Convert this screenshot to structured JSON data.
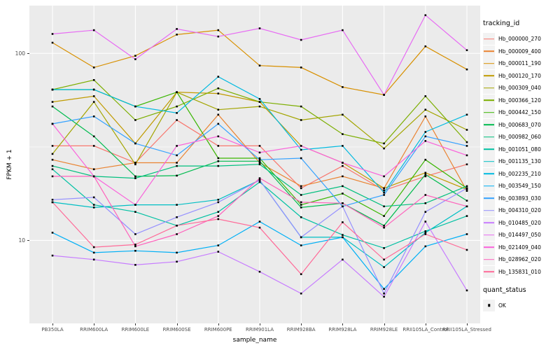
{
  "chart_data": {
    "type": "line",
    "title": "",
    "xlabel": "sample_name",
    "ylabel": "FPKM + 1",
    "x_categories": [
      "PB350LA",
      "RRIM600LA",
      "RRIM600LE",
      "RRIM600SE",
      "RRIM600PE",
      "RRIM901LA",
      "RRIM928BA",
      "RRIM928LA",
      "RRIM928LE",
      "RRII105LA_Control",
      "RRII105LA_Stressed"
    ],
    "y_scale": "log10",
    "ylim": [
      3.6,
      180
    ],
    "y_major_ticks": [
      10,
      100
    ],
    "y_minor_ticks": [
      31.6
    ],
    "grid": true,
    "panel_background": "#EBEBEB",
    "gridline_color": "#FFFFFF",
    "point_marker": "black-square",
    "legend_position": "right",
    "legend_title": "tracking_id",
    "point_legend": {
      "title": "quant_status",
      "label": "OK",
      "marker": "black-square"
    },
    "series": [
      {
        "name": "Hb_000000_270",
        "color": "#F8766D",
        "values": [
          32,
          32,
          26,
          44,
          32,
          32,
          19,
          25,
          18.5,
          22,
          25.5
        ]
      },
      {
        "name": "Hb_000009_400",
        "color": "#EA8331",
        "values": [
          27,
          24,
          26,
          26,
          47,
          26,
          19.5,
          22,
          19,
          46,
          18.4
        ]
      },
      {
        "name": "Hb_000011_190",
        "color": "#D89000",
        "values": [
          114,
          84,
          97,
          126,
          133,
          86,
          84,
          66,
          60,
          109,
          82
        ]
      },
      {
        "name": "Hb_000120_170",
        "color": "#C09B00",
        "values": [
          55,
          59,
          33,
          62,
          61,
          55,
          32,
          26,
          19,
          23,
          18.7
        ]
      },
      {
        "name": "Hb_000309_040",
        "color": "#A3A500",
        "values": [
          29,
          55,
          25.5,
          62,
          50,
          52,
          44,
          47,
          31,
          50,
          39
        ]
      },
      {
        "name": "Hb_000366_120",
        "color": "#7CAE00",
        "values": [
          64,
          72,
          44,
          52,
          65,
          55,
          52,
          37,
          33,
          59,
          33.5
        ]
      },
      {
        "name": "Hb_000442_150",
        "color": "#39B600",
        "values": [
          64,
          64,
          52,
          62,
          27.5,
          27.5,
          15.5,
          17.8,
          13.5,
          27,
          19
        ]
      },
      {
        "name": "Hb_000683_070",
        "color": "#00BB4E",
        "values": [
          52,
          36,
          22,
          22.2,
          26.5,
          26.5,
          15,
          15.8,
          12,
          22.5,
          16.3
        ]
      },
      {
        "name": "Hb_000982_060",
        "color": "#00BF7D",
        "values": [
          25,
          22,
          21.5,
          25,
          25,
          25.5,
          17.5,
          19.5,
          15.2,
          15.8,
          19.5
        ]
      },
      {
        "name": "Hb_001051_080",
        "color": "#00C1A3",
        "values": [
          24,
          15.5,
          14.2,
          12,
          14.2,
          20.5,
          13.3,
          10.7,
          9.1,
          11.2,
          13.5
        ]
      },
      {
        "name": "Hb_001135_130",
        "color": "#00BFC4",
        "values": [
          16,
          15,
          15.5,
          15.5,
          16.5,
          21,
          10.4,
          10.4,
          7.2,
          11,
          15.2
        ]
      },
      {
        "name": "Hb_002235_210",
        "color": "#00BAE0",
        "values": [
          64,
          64,
          52,
          48,
          75,
          57,
          30.5,
          32,
          18,
          38,
          47
        ]
      },
      {
        "name": "Hb_003549_150",
        "color": "#00B0F6",
        "values": [
          11,
          8.6,
          8.8,
          8.6,
          9.4,
          12.6,
          9.4,
          10.4,
          5.5,
          9.3,
          10.8
        ]
      },
      {
        "name": "Hb_003893_030",
        "color": "#35A2FF",
        "values": [
          42,
          46,
          33,
          28.5,
          42,
          27,
          27.5,
          15.2,
          17.5,
          36,
          32
        ]
      },
      {
        "name": "Hb_004310_020",
        "color": "#9590FF",
        "values": [
          16.5,
          17,
          10.8,
          13.3,
          16,
          21,
          10.4,
          15.2,
          5.2,
          14.2,
          19
        ]
      },
      {
        "name": "Hb_010485_020",
        "color": "#C77CFF",
        "values": [
          8.3,
          7.9,
          7.4,
          7.7,
          8.7,
          6.8,
          5.2,
          7.9,
          5.0,
          12.6,
          5.4
        ]
      },
      {
        "name": "Hb_014497_050",
        "color": "#E76BF3",
        "values": [
          127,
          133,
          93,
          135,
          123,
          136,
          118,
          133,
          60,
          160,
          104
        ]
      },
      {
        "name": "Hb_021409_040",
        "color": "#FA62DB",
        "values": [
          42,
          22,
          15.5,
          32,
          36,
          29.5,
          32,
          26,
          22,
          34,
          28.5
        ]
      },
      {
        "name": "Hb_028962_020",
        "color": "#FF62BC",
        "values": [
          22,
          22,
          9.3,
          10.8,
          13.5,
          21.5,
          16,
          15.8,
          11.7,
          17.5,
          15.2
        ]
      },
      {
        "name": "Hb_135831_010",
        "color": "#FF6A98",
        "values": [
          16,
          9.2,
          9.5,
          12,
          13,
          11.7,
          6.6,
          12.5,
          7.9,
          10.8,
          8.9
        ]
      }
    ]
  }
}
